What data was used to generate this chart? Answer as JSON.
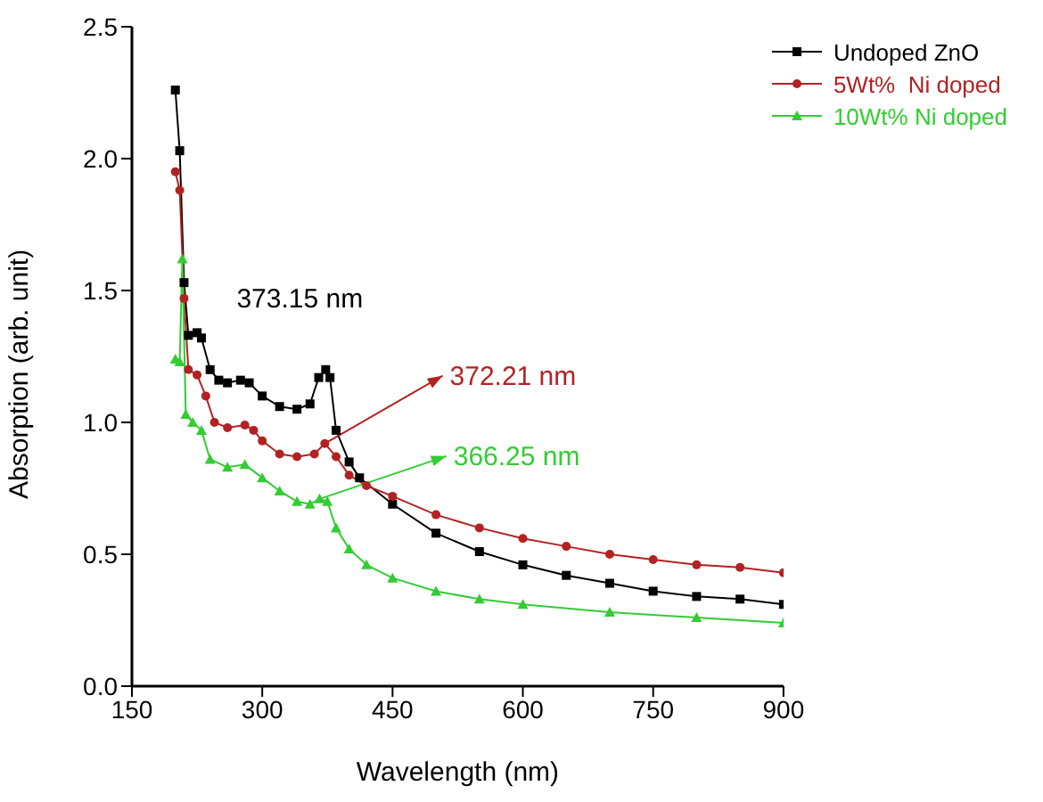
{
  "chart_data": {
    "type": "line",
    "xlabel": "Wavelength (nm)",
    "ylabel": "Absorption (arb. unit)",
    "xlim": [
      150,
      900
    ],
    "xticks": [
      150,
      300,
      450,
      600,
      750,
      900
    ],
    "ylim": [
      0,
      2.5
    ],
    "yticks": [
      {
        "value": 0,
        "label": "0.0"
      },
      0.5,
      {
        "value": 1,
        "label": "1.0"
      },
      1.5,
      {
        "value": 2,
        "label": "2.0"
      },
      2.5
    ],
    "legend": "top right",
    "series": [
      {
        "name": "Undoped ZnO",
        "color": "#000000",
        "marker": "square",
        "x": [
          200,
          205,
          210,
          215,
          225,
          230,
          240,
          250,
          260,
          275,
          285,
          300,
          320,
          340,
          355,
          365,
          373,
          378,
          385,
          400,
          412,
          450,
          500,
          550,
          600,
          650,
          700,
          750,
          800,
          850,
          900
        ],
        "values": [
          2.26,
          2.03,
          1.53,
          1.33,
          1.34,
          1.32,
          1.2,
          1.16,
          1.15,
          1.16,
          1.15,
          1.1,
          1.06,
          1.05,
          1.07,
          1.17,
          1.2,
          1.17,
          0.97,
          0.85,
          0.79,
          0.69,
          0.58,
          0.51,
          0.46,
          0.42,
          0.39,
          0.36,
          0.34,
          0.33,
          0.31
        ]
      },
      {
        "name": "5Wt%  Ni doped",
        "color": "#b22222",
        "marker": "circle",
        "x": [
          200,
          205,
          210,
          215,
          225,
          235,
          245,
          260,
          280,
          290,
          300,
          320,
          340,
          360,
          372,
          385,
          400,
          420,
          450,
          500,
          550,
          600,
          650,
          700,
          750,
          800,
          850,
          900
        ],
        "values": [
          1.95,
          1.88,
          1.47,
          1.2,
          1.18,
          1.1,
          1.0,
          0.98,
          0.99,
          0.97,
          0.93,
          0.88,
          0.87,
          0.88,
          0.92,
          0.87,
          0.8,
          0.76,
          0.72,
          0.65,
          0.6,
          0.56,
          0.53,
          0.5,
          0.48,
          0.46,
          0.45,
          0.43
        ]
      },
      {
        "name": "10Wt% Ni doped",
        "color": "#33cc33",
        "marker": "triangle",
        "x": [
          200,
          205,
          208,
          212,
          220,
          230,
          240,
          260,
          280,
          300,
          320,
          340,
          355,
          366,
          375,
          385,
          400,
          420,
          450,
          500,
          550,
          600,
          700,
          800,
          900
        ],
        "values": [
          1.24,
          1.23,
          1.62,
          1.03,
          1.0,
          0.97,
          0.86,
          0.83,
          0.84,
          0.79,
          0.74,
          0.7,
          0.69,
          0.71,
          0.7,
          0.6,
          0.52,
          0.46,
          0.41,
          0.36,
          0.33,
          0.31,
          0.28,
          0.26,
          0.24
        ]
      }
    ],
    "annotations": [
      {
        "text": "373.15 nm",
        "x": 373.15,
        "y": 1.2
      },
      {
        "text": "372.21 nm",
        "x": 372.21,
        "y": 0.92
      },
      {
        "text": "366.25 nm",
        "x": 366.25,
        "y": 0.71
      }
    ]
  }
}
